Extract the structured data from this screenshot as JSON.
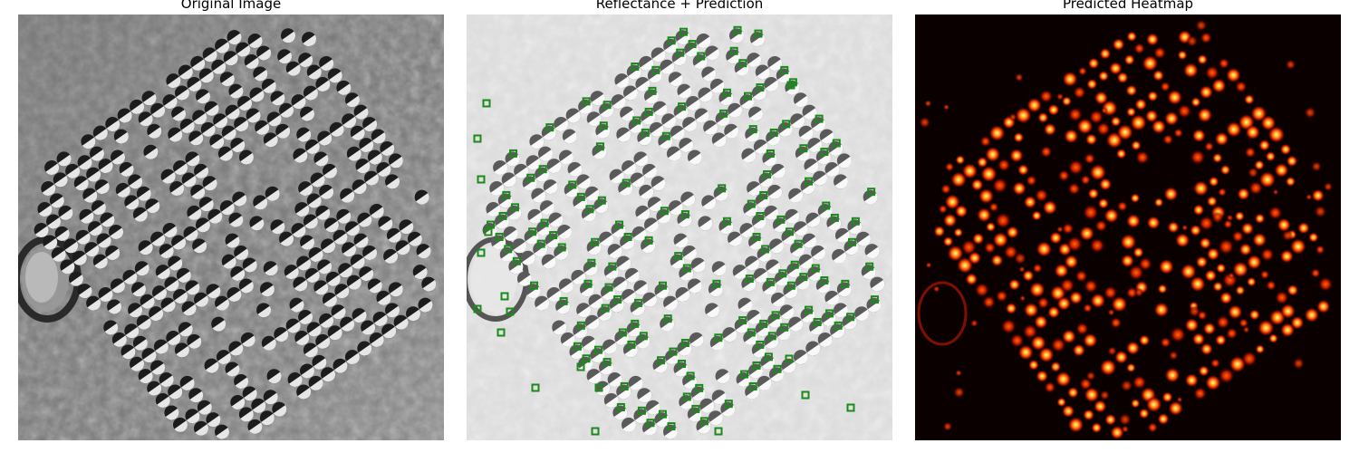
{
  "panels": [
    {
      "title": "Original Image"
    },
    {
      "title": "Reflectance + Prediction"
    },
    {
      "title": "Predicted Heatmap"
    }
  ],
  "colors": {
    "marker": "#1a8a1a",
    "heatmap_bg": "#0a0000",
    "hot": "#ffd24a",
    "warm": "#ff5a00",
    "ember": "#a30f00"
  },
  "description_icons": [
    "dot-grid-image",
    "predicted-point-marker",
    "heat-blob"
  ]
}
